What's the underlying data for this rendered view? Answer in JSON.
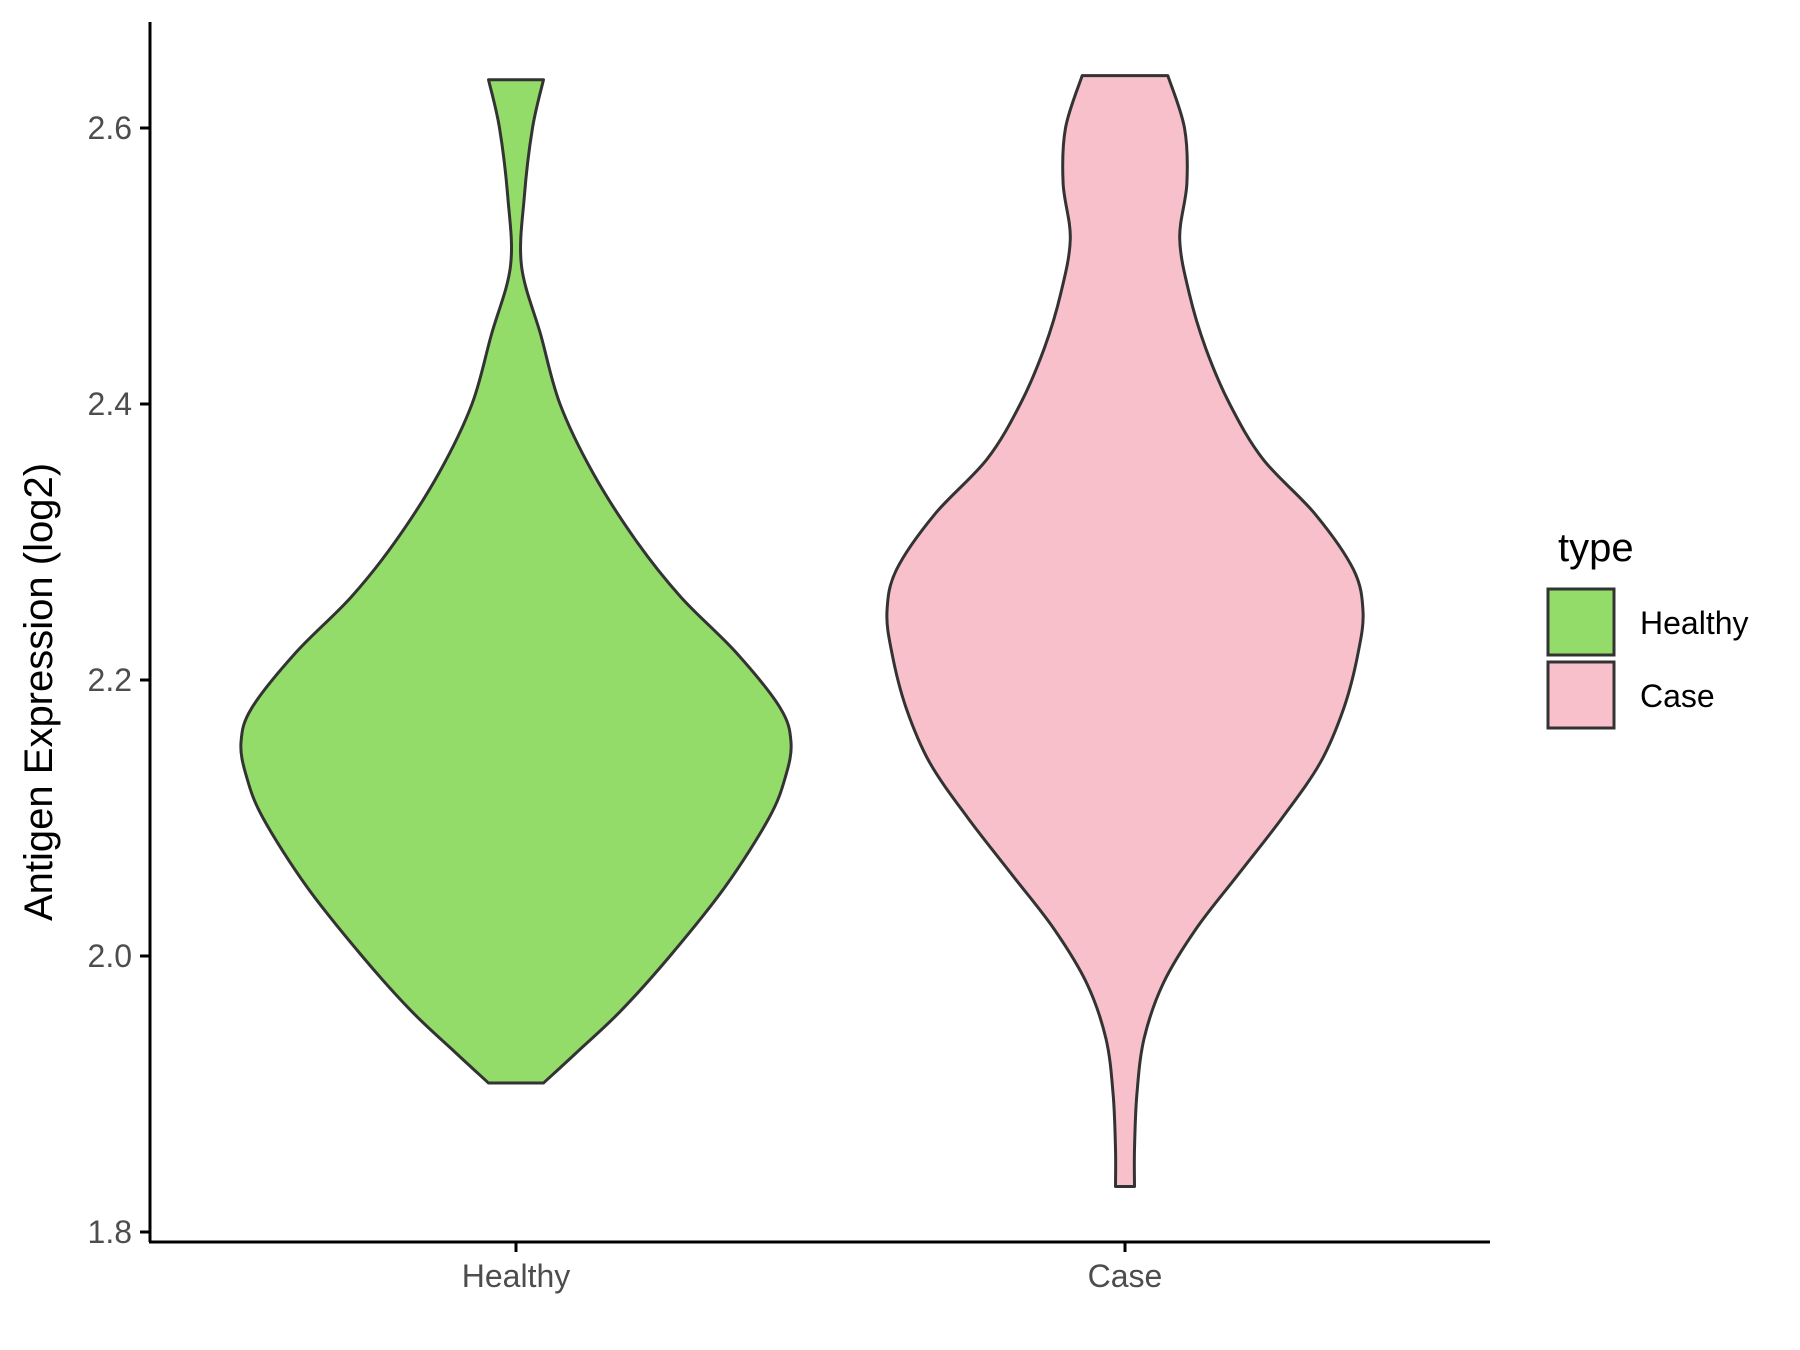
{
  "chart_data": {
    "type": "violin",
    "title": "",
    "xlabel": "",
    "ylabel": "Antigen Expression (log2)",
    "ylim": [
      1.8,
      2.68
    ],
    "yticks": [
      1.8,
      2.0,
      2.2,
      2.4,
      2.6
    ],
    "ytick_labels": [
      "1.8",
      "2.0",
      "2.2",
      "2.4",
      "2.6"
    ],
    "categories": [
      "Healthy",
      "Case"
    ],
    "legend": {
      "title": "type",
      "position": "right",
      "entries": [
        "Healthy",
        "Case"
      ]
    },
    "colors": {
      "Healthy": "#93dc69",
      "Case": "#f7c0cb",
      "outline": "#333333",
      "axis": "#000000"
    },
    "grid": false,
    "series": [
      {
        "name": "Healthy",
        "range": [
          1.908,
          2.635
        ],
        "density_profile": [
          [
            1.908,
            0.1
          ],
          [
            1.93,
            0.22
          ],
          [
            1.96,
            0.38
          ],
          [
            2.0,
            0.56
          ],
          [
            2.05,
            0.76
          ],
          [
            2.1,
            0.92
          ],
          [
            2.13,
            0.98
          ],
          [
            2.155,
            1.0
          ],
          [
            2.18,
            0.96
          ],
          [
            2.22,
            0.8
          ],
          [
            2.26,
            0.6
          ],
          [
            2.3,
            0.44
          ],
          [
            2.35,
            0.28
          ],
          [
            2.4,
            0.16
          ],
          [
            2.45,
            0.09
          ],
          [
            2.5,
            0.02
          ],
          [
            2.55,
            0.03
          ],
          [
            2.6,
            0.06
          ],
          [
            2.635,
            0.1
          ]
        ]
      },
      {
        "name": "Case",
        "range": [
          1.833,
          2.638
        ],
        "density_profile": [
          [
            1.833,
            0.04
          ],
          [
            1.86,
            0.04
          ],
          [
            1.9,
            0.05
          ],
          [
            1.94,
            0.08
          ],
          [
            1.98,
            0.16
          ],
          [
            2.02,
            0.3
          ],
          [
            2.06,
            0.48
          ],
          [
            2.1,
            0.66
          ],
          [
            2.14,
            0.82
          ],
          [
            2.18,
            0.92
          ],
          [
            2.22,
            0.98
          ],
          [
            2.25,
            1.0
          ],
          [
            2.28,
            0.96
          ],
          [
            2.32,
            0.8
          ],
          [
            2.36,
            0.58
          ],
          [
            2.4,
            0.44
          ],
          [
            2.44,
            0.34
          ],
          [
            2.48,
            0.27
          ],
          [
            2.52,
            0.23
          ],
          [
            2.56,
            0.26
          ],
          [
            2.6,
            0.25
          ],
          [
            2.638,
            0.18
          ]
        ]
      }
    ]
  }
}
